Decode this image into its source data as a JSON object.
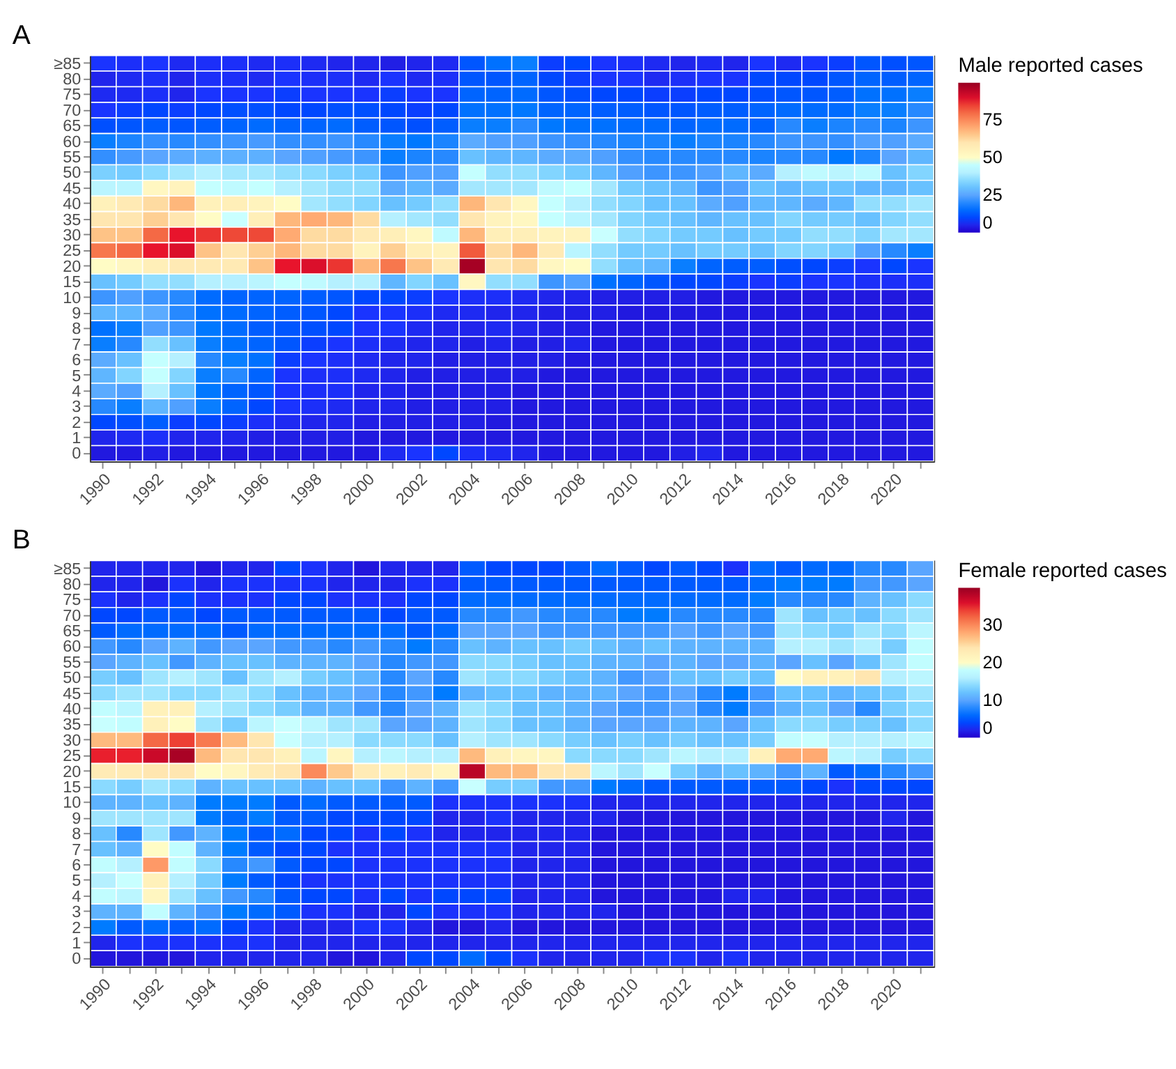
{
  "chart_data": [
    {
      "type": "heatmap",
      "title": "A",
      "clabel": "Male reported cases",
      "clim": [
        0,
        100
      ],
      "cticks": [
        0,
        25,
        50,
        75
      ],
      "categories": [
        "1990",
        null,
        "1992",
        null,
        "1994",
        null,
        "1996",
        null,
        "1998",
        null,
        "2000",
        null,
        "2002",
        null,
        "2004",
        null,
        "2006",
        null,
        "2008",
        null,
        "2010",
        null,
        "2012",
        null,
        "2014",
        null,
        "2016",
        null,
        "2018",
        null,
        "2020",
        null
      ],
      "y_categories": [
        "≥85",
        "80",
        "75",
        "70",
        "65",
        "60",
        "55",
        "50",
        "45",
        "40",
        "35",
        "30",
        "25",
        "20",
        "15",
        "10",
        "9",
        "8",
        "7",
        "6",
        "5",
        "4",
        "3",
        "2",
        "1",
        "0"
      ],
      "cells": [
        [
          8,
          7,
          8,
          6,
          7,
          7,
          6,
          7,
          6,
          5,
          5,
          4,
          5,
          6,
          12,
          16,
          18,
          9,
          10,
          8,
          7,
          6,
          5,
          6,
          5,
          8,
          6,
          8,
          9,
          12,
          11,
          12
        ],
        [
          5,
          6,
          7,
          5,
          7,
          7,
          6,
          8,
          7,
          7,
          6,
          8,
          6,
          7,
          12,
          12,
          14,
          10,
          9,
          8,
          8,
          6,
          7,
          8,
          8,
          10,
          10,
          10,
          12,
          14,
          13,
          14
        ],
        [
          6,
          6,
          7,
          5,
          8,
          8,
          8,
          9,
          8,
          8,
          8,
          9,
          8,
          8,
          14,
          14,
          15,
          12,
          11,
          10,
          10,
          9,
          9,
          10,
          10,
          11,
          12,
          12,
          13,
          16,
          16,
          18
        ],
        [
          8,
          9,
          10,
          9,
          10,
          11,
          11,
          10,
          10,
          11,
          11,
          10,
          9,
          10,
          16,
          16,
          17,
          14,
          14,
          13,
          13,
          12,
          12,
          13,
          13,
          14,
          15,
          15,
          15,
          18,
          18,
          20
        ],
        [
          11,
          12,
          13,
          12,
          13,
          14,
          15,
          14,
          14,
          15,
          13,
          12,
          11,
          13,
          18,
          18,
          20,
          17,
          16,
          16,
          15,
          15,
          14,
          15,
          15,
          14,
          20,
          18,
          19,
          20,
          19,
          22
        ],
        [
          18,
          19,
          21,
          20,
          21,
          22,
          23,
          21,
          21,
          22,
          20,
          18,
          17,
          19,
          26,
          24,
          24,
          22,
          21,
          20,
          19,
          19,
          18,
          19,
          19,
          20,
          22,
          22,
          21,
          24,
          24,
          26
        ],
        [
          21,
          23,
          25,
          26,
          27,
          27,
          27,
          25,
          24,
          23,
          22,
          18,
          19,
          20,
          30,
          28,
          28,
          26,
          26,
          24,
          21,
          20,
          20,
          20,
          20,
          19,
          20,
          20,
          17,
          19,
          25,
          28
        ],
        [
          33,
          32,
          35,
          38,
          40,
          38,
          38,
          36,
          35,
          33,
          32,
          22,
          24,
          24,
          46,
          36,
          36,
          34,
          32,
          28,
          24,
          22,
          22,
          24,
          28,
          26,
          40,
          44,
          42,
          44,
          30,
          34
        ],
        [
          42,
          42,
          52,
          54,
          46,
          44,
          46,
          40,
          38,
          36,
          36,
          26,
          28,
          26,
          38,
          38,
          38,
          44,
          46,
          38,
          32,
          30,
          28,
          22,
          24,
          30,
          28,
          30,
          30,
          28,
          28,
          30
        ],
        [
          55,
          58,
          62,
          68,
          55,
          56,
          54,
          50,
          38,
          36,
          34,
          30,
          32,
          36,
          68,
          60,
          52,
          46,
          40,
          36,
          34,
          30,
          30,
          26,
          24,
          28,
          28,
          26,
          28,
          36,
          36,
          38
        ],
        [
          60,
          60,
          64,
          60,
          50,
          48,
          56,
          68,
          70,
          68,
          62,
          40,
          38,
          36,
          60,
          54,
          52,
          46,
          42,
          38,
          34,
          32,
          30,
          28,
          30,
          30,
          34,
          32,
          32,
          30,
          34,
          36
        ],
        [
          66,
          66,
          80,
          88,
          86,
          84,
          84,
          70,
          62,
          62,
          58,
          56,
          52,
          44,
          68,
          56,
          56,
          54,
          54,
          48,
          36,
          34,
          32,
          32,
          30,
          32,
          32,
          36,
          36,
          34,
          38,
          38
        ],
        [
          78,
          80,
          88,
          90,
          66,
          60,
          64,
          68,
          62,
          62,
          54,
          64,
          56,
          54,
          82,
          62,
          68,
          58,
          42,
          36,
          32,
          32,
          30,
          32,
          32,
          30,
          34,
          34,
          32,
          24,
          20,
          18
        ],
        [
          50,
          52,
          56,
          58,
          58,
          58,
          66,
          88,
          90,
          86,
          68,
          78,
          66,
          58,
          98,
          60,
          62,
          52,
          50,
          36,
          30,
          28,
          18,
          14,
          13,
          13,
          11,
          10,
          9,
          8,
          10,
          8
        ],
        [
          30,
          32,
          36,
          36,
          40,
          40,
          42,
          46,
          44,
          40,
          40,
          28,
          34,
          30,
          52,
          36,
          36,
          22,
          24,
          16,
          14,
          12,
          10,
          10,
          9,
          8,
          9,
          8,
          8,
          7,
          7,
          7
        ],
        [
          22,
          24,
          22,
          20,
          15,
          14,
          14,
          14,
          13,
          12,
          10,
          10,
          9,
          8,
          7,
          7,
          6,
          5,
          5,
          4,
          4,
          4,
          4,
          3,
          3,
          3,
          3,
          3,
          3,
          3,
          3,
          3
        ],
        [
          28,
          28,
          26,
          20,
          16,
          15,
          14,
          13,
          12,
          10,
          8,
          8,
          7,
          6,
          6,
          5,
          5,
          4,
          4,
          4,
          3,
          3,
          3,
          3,
          3,
          3,
          3,
          3,
          3,
          3,
          3,
          3
        ],
        [
          16,
          18,
          24,
          22,
          17,
          15,
          13,
          12,
          11,
          10,
          8,
          8,
          6,
          5,
          5,
          6,
          5,
          4,
          4,
          3,
          3,
          3,
          3,
          3,
          3,
          3,
          3,
          3,
          3,
          3,
          3,
          3
        ],
        [
          18,
          20,
          36,
          30,
          18,
          16,
          14,
          12,
          9,
          8,
          7,
          6,
          5,
          5,
          4,
          5,
          4,
          4,
          5,
          3,
          3,
          3,
          3,
          3,
          3,
          3,
          3,
          3,
          3,
          3,
          3,
          3
        ],
        [
          26,
          30,
          46,
          40,
          20,
          18,
          16,
          9,
          8,
          7,
          6,
          5,
          5,
          4,
          4,
          4,
          4,
          4,
          3,
          3,
          3,
          3,
          3,
          3,
          3,
          3,
          3,
          3,
          3,
          3,
          3,
          3
        ],
        [
          28,
          34,
          46,
          34,
          18,
          20,
          14,
          8,
          7,
          7,
          6,
          5,
          4,
          4,
          4,
          4,
          4,
          3,
          3,
          3,
          3,
          3,
          3,
          3,
          3,
          3,
          3,
          3,
          3,
          3,
          3,
          3
        ],
        [
          26,
          24,
          40,
          30,
          17,
          14,
          12,
          8,
          7,
          7,
          5,
          5,
          4,
          4,
          4,
          4,
          3,
          3,
          3,
          3,
          3,
          3,
          3,
          3,
          3,
          3,
          3,
          3,
          3,
          3,
          3,
          3
        ],
        [
          20,
          18,
          28,
          24,
          18,
          14,
          10,
          8,
          7,
          6,
          5,
          5,
          4,
          4,
          4,
          4,
          3,
          3,
          3,
          3,
          3,
          3,
          3,
          3,
          3,
          3,
          3,
          3,
          3,
          3,
          3,
          3
        ],
        [
          10,
          11,
          13,
          9,
          10,
          9,
          7,
          6,
          5,
          5,
          4,
          4,
          4,
          4,
          4,
          3,
          3,
          3,
          3,
          3,
          3,
          3,
          3,
          3,
          3,
          3,
          3,
          3,
          3,
          3,
          3,
          3
        ],
        [
          5,
          6,
          7,
          5,
          5,
          5,
          4,
          4,
          4,
          4,
          3,
          3,
          3,
          3,
          3,
          3,
          3,
          3,
          3,
          3,
          3,
          3,
          3,
          3,
          3,
          3,
          3,
          3,
          3,
          3,
          3,
          3
        ],
        [
          3,
          3,
          4,
          3,
          3,
          3,
          3,
          3,
          3,
          3,
          3,
          6,
          8,
          10,
          7,
          6,
          5,
          3,
          3,
          3,
          3,
          3,
          4,
          5,
          3,
          3,
          3,
          3,
          3,
          3,
          3,
          3
        ]
      ]
    },
    {
      "type": "heatmap",
      "title": "B",
      "clabel": "Female reported cases",
      "clim": [
        0,
        40
      ],
      "cticks": [
        0,
        10,
        20,
        30
      ],
      "categories": [
        "1990",
        null,
        "1992",
        null,
        "1994",
        null,
        "1996",
        null,
        "1998",
        null,
        "2000",
        null,
        "2002",
        null,
        "2004",
        null,
        "2006",
        null,
        "2008",
        null,
        "2010",
        null,
        "2012",
        null,
        "2014",
        null,
        "2016",
        null,
        "2018",
        null,
        "2020",
        null
      ],
      "y_categories": [
        "≥85",
        "80",
        "75",
        "70",
        "65",
        "60",
        "55",
        "50",
        "45",
        "40",
        "35",
        "30",
        "25",
        "20",
        "15",
        "10",
        "9",
        "8",
        "7",
        "6",
        "5",
        "4",
        "3",
        "2",
        "1",
        "0"
      ],
      "cells": [
        [
          2,
          2,
          2,
          2,
          1,
          2,
          2,
          4,
          3,
          2,
          1,
          2,
          2,
          2,
          5,
          4,
          4,
          4,
          5,
          6,
          5,
          4,
          5,
          4,
          3,
          6,
          5,
          6,
          6,
          8,
          8,
          10
        ],
        [
          2,
          2,
          1,
          3,
          2,
          3,
          3,
          3,
          3,
          2,
          2,
          2,
          3,
          3,
          5,
          5,
          5,
          5,
          5,
          5,
          5,
          5,
          5,
          5,
          5,
          6,
          7,
          7,
          7,
          9,
          9,
          10
        ],
        [
          3,
          2,
          3,
          4,
          3,
          3,
          3,
          4,
          4,
          3,
          3,
          3,
          4,
          4,
          6,
          6,
          6,
          6,
          6,
          6,
          6,
          6,
          6,
          6,
          6,
          7,
          8,
          8,
          8,
          11,
          12,
          14
        ],
        [
          4,
          4,
          5,
          5,
          4,
          5,
          5,
          5,
          5,
          5,
          5,
          4,
          5,
          5,
          8,
          8,
          9,
          8,
          8,
          8,
          7,
          7,
          8,
          8,
          8,
          8,
          15,
          12,
          13,
          12,
          14,
          15
        ],
        [
          5,
          6,
          6,
          6,
          6,
          5,
          6,
          6,
          6,
          6,
          6,
          6,
          5,
          6,
          10,
          10,
          10,
          9,
          9,
          9,
          9,
          9,
          10,
          9,
          10,
          9,
          15,
          14,
          13,
          15,
          14,
          17
        ],
        [
          9,
          8,
          10,
          11,
          9,
          10,
          10,
          9,
          9,
          8,
          9,
          8,
          7,
          8,
          12,
          11,
          12,
          12,
          13,
          12,
          11,
          12,
          11,
          11,
          11,
          11,
          16,
          16,
          15,
          16,
          13,
          18
        ],
        [
          10,
          11,
          12,
          9,
          11,
          12,
          12,
          11,
          11,
          11,
          10,
          8,
          9,
          9,
          14,
          14,
          13,
          12,
          12,
          11,
          11,
          10,
          11,
          10,
          10,
          11,
          10,
          12,
          10,
          12,
          15,
          18
        ],
        [
          13,
          12,
          15,
          16,
          15,
          12,
          15,
          16,
          13,
          12,
          11,
          8,
          10,
          8,
          15,
          14,
          14,
          13,
          12,
          11,
          9,
          10,
          12,
          12,
          13,
          12,
          20,
          22,
          22,
          24,
          16,
          17
        ],
        [
          14,
          15,
          15,
          14,
          14,
          15,
          14,
          12,
          11,
          11,
          10,
          8,
          9,
          7,
          11,
          12,
          12,
          11,
          11,
          11,
          10,
          9,
          10,
          8,
          7,
          9,
          12,
          12,
          11,
          12,
          13,
          15
        ],
        [
          18,
          17,
          22,
          22,
          16,
          15,
          14,
          13,
          11,
          11,
          9,
          8,
          10,
          11,
          15,
          14,
          12,
          12,
          11,
          10,
          9,
          9,
          10,
          8,
          7,
          9,
          11,
          12,
          10,
          8,
          13,
          14
        ],
        [
          19,
          18,
          22,
          20,
          15,
          13,
          17,
          19,
          17,
          15,
          15,
          10,
          10,
          11,
          15,
          14,
          12,
          12,
          11,
          10,
          10,
          10,
          11,
          11,
          10,
          12,
          14,
          14,
          13,
          13,
          12,
          14
        ],
        [
          27,
          27,
          32,
          34,
          31,
          27,
          24,
          19,
          16,
          16,
          14,
          14,
          14,
          12,
          16,
          15,
          15,
          14,
          13,
          12,
          13,
          12,
          13,
          12,
          12,
          13,
          18,
          19,
          16,
          16,
          16,
          17
        ],
        [
          35,
          35,
          37,
          39,
          27,
          24,
          24,
          22,
          17,
          21,
          16,
          17,
          16,
          16,
          27,
          22,
          21,
          21,
          14,
          14,
          14,
          15,
          17,
          16,
          16,
          22,
          28,
          28,
          17,
          16,
          13,
          14
        ],
        [
          23,
          23,
          24,
          24,
          20,
          21,
          23,
          24,
          30,
          26,
          23,
          22,
          23,
          21,
          38,
          27,
          27,
          24,
          24,
          17,
          15,
          19,
          13,
          11,
          12,
          11,
          9,
          11,
          5,
          6,
          8,
          9
        ],
        [
          14,
          13,
          15,
          14,
          11,
          12,
          12,
          12,
          11,
          12,
          12,
          9,
          11,
          9,
          19,
          13,
          13,
          9,
          9,
          7,
          6,
          5,
          5,
          5,
          5,
          5,
          5,
          4,
          3,
          4,
          4,
          4
        ],
        [
          11,
          11,
          12,
          11,
          7,
          7,
          7,
          5,
          6,
          5,
          5,
          5,
          5,
          3,
          3,
          3,
          3,
          3,
          3,
          2,
          2,
          2,
          2,
          2,
          2,
          2,
          2,
          2,
          2,
          2,
          2,
          2
        ],
        [
          15,
          15,
          15,
          15,
          7,
          6,
          7,
          5,
          5,
          4,
          4,
          4,
          4,
          2,
          2,
          3,
          2,
          2,
          2,
          2,
          1,
          1,
          1,
          1,
          1,
          1,
          1,
          1,
          1,
          1,
          2,
          1
        ],
        [
          12,
          8,
          15,
          9,
          11,
          7,
          5,
          6,
          4,
          4,
          3,
          4,
          3,
          2,
          2,
          2,
          2,
          2,
          2,
          1,
          1,
          1,
          1,
          1,
          1,
          1,
          1,
          1,
          1,
          1,
          1,
          1
        ],
        [
          12,
          11,
          20,
          18,
          11,
          7,
          5,
          4,
          4,
          3,
          3,
          3,
          3,
          3,
          3,
          3,
          2,
          2,
          2,
          1,
          1,
          1,
          1,
          1,
          1,
          1,
          1,
          1,
          1,
          1,
          1,
          1
        ],
        [
          18,
          16,
          29,
          18,
          14,
          8,
          9,
          5,
          4,
          4,
          3,
          3,
          3,
          3,
          3,
          3,
          2,
          2,
          2,
          1,
          1,
          1,
          1,
          1,
          1,
          1,
          1,
          1,
          1,
          1,
          1,
          1
        ],
        [
          16,
          19,
          22,
          16,
          13,
          7,
          5,
          4,
          3,
          3,
          3,
          3,
          3,
          3,
          3,
          3,
          2,
          2,
          2,
          1,
          1,
          1,
          1,
          1,
          1,
          1,
          1,
          1,
          1,
          1,
          1,
          1
        ],
        [
          18,
          17,
          21,
          15,
          12,
          9,
          8,
          5,
          4,
          4,
          3,
          4,
          3,
          4,
          4,
          4,
          2,
          2,
          2,
          1,
          1,
          1,
          1,
          1,
          2,
          2,
          1,
          1,
          1,
          1,
          1,
          1
        ],
        [
          11,
          11,
          18,
          11,
          9,
          7,
          6,
          5,
          3,
          3,
          2,
          2,
          4,
          3,
          3,
          3,
          2,
          2,
          2,
          2,
          1,
          1,
          1,
          1,
          1,
          1,
          1,
          1,
          1,
          1,
          1,
          1
        ],
        [
          7,
          5,
          6,
          5,
          6,
          4,
          3,
          2,
          2,
          2,
          3,
          3,
          2,
          1,
          1,
          2,
          1,
          1,
          1,
          1,
          1,
          1,
          1,
          1,
          1,
          1,
          1,
          1,
          1,
          1,
          1,
          1
        ],
        [
          2,
          3,
          3,
          3,
          3,
          3,
          3,
          2,
          2,
          2,
          2,
          2,
          2,
          2,
          2,
          2,
          2,
          2,
          2,
          2,
          2,
          2,
          2,
          2,
          2,
          2,
          2,
          2,
          2,
          2,
          2,
          2
        ],
        [
          1,
          1,
          1,
          1,
          2,
          2,
          2,
          2,
          2,
          1,
          1,
          2,
          4,
          4,
          6,
          4,
          3,
          2,
          2,
          2,
          2,
          3,
          3,
          2,
          3,
          2,
          2,
          2,
          2,
          2,
          2,
          2
        ]
      ]
    }
  ]
}
